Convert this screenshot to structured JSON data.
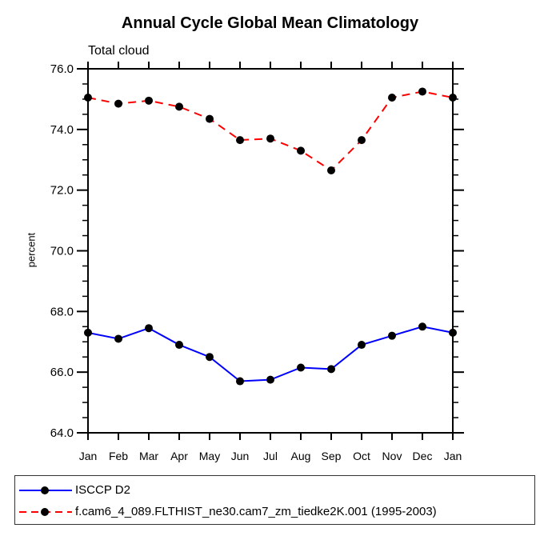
{
  "title": "Annual Cycle Global Mean Climatology",
  "subtitle": "Total cloud",
  "y_axis_label": "percent",
  "colors": {
    "obs_line": "#0000ff",
    "model_line": "#ff0000",
    "marker": "#000000",
    "axis": "#000000",
    "background": "#ffffff"
  },
  "chart_data": {
    "type": "line",
    "categories": [
      "Jan",
      "Feb",
      "Mar",
      "Apr",
      "May",
      "Jun",
      "Jul",
      "Aug",
      "Sep",
      "Oct",
      "Nov",
      "Dec",
      "Jan"
    ],
    "series": [
      {
        "name": "ISCCP D2",
        "color": "#0000ff",
        "line_style": "solid",
        "marker": "circle",
        "marker_color": "#000000",
        "values": [
          67.3,
          67.1,
          67.45,
          66.9,
          66.5,
          65.7,
          65.75,
          66.15,
          66.1,
          66.9,
          67.2,
          67.5,
          67.3
        ]
      },
      {
        "name": "f.cam6_4_089.FLTHIST_ne30.cam7_zm_tiedke2K.001 (1995-2003)",
        "color": "#ff0000",
        "line_style": "dashed",
        "marker": "circle",
        "marker_color": "#000000",
        "values": [
          75.05,
          74.85,
          74.95,
          74.75,
          74.35,
          73.65,
          73.7,
          73.3,
          72.65,
          73.65,
          75.05,
          75.25,
          75.05
        ]
      }
    ],
    "title": "Annual Cycle Global Mean Climatology",
    "subtitle": "Total cloud",
    "xlabel": "",
    "ylabel": "percent",
    "ylim": [
      64.0,
      76.0
    ],
    "yticks": [
      64.0,
      66.0,
      68.0,
      70.0,
      72.0,
      74.0,
      76.0
    ],
    "ytick_labels": [
      "64.0",
      "66.0",
      "68.0",
      "70.0",
      "72.0",
      "74.0",
      "76.0"
    ],
    "minor_tick_interval": 0.5,
    "grid": false,
    "legend_position": "bottom"
  }
}
